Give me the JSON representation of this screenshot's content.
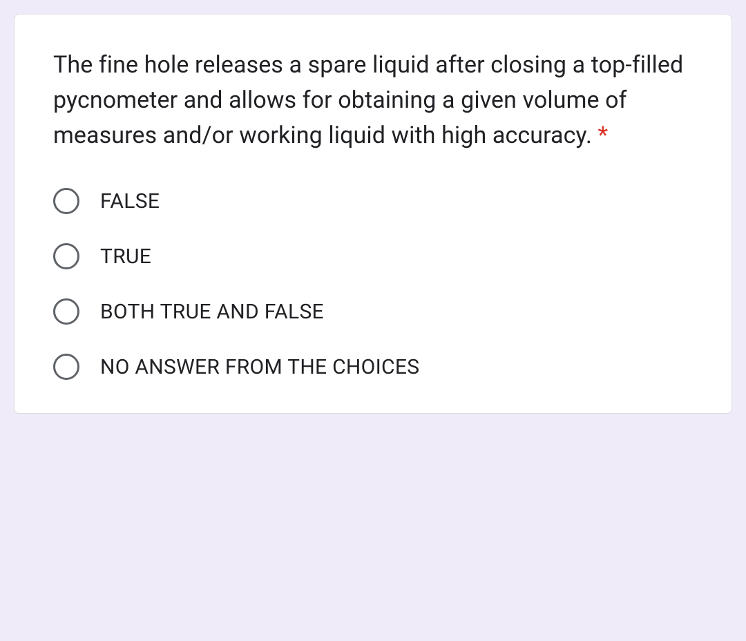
{
  "question": {
    "text": "The fine hole releases a spare liquid after closing a top-filled pycnometer and allows for obtaining a given volume of measures and/or working liquid with high accuracy.",
    "required_marker": " *",
    "options": [
      {
        "label": "FALSE"
      },
      {
        "label": "TRUE"
      },
      {
        "label": "BOTH TRUE AND FALSE"
      },
      {
        "label": "NO ANSWER FROM THE CHOICES"
      }
    ]
  },
  "colors": {
    "background": "#f0ebf8",
    "card_bg": "#ffffff",
    "card_border": "#dadce0",
    "text": "#202124",
    "radio_border": "#5f6368",
    "required": "#d93025"
  }
}
